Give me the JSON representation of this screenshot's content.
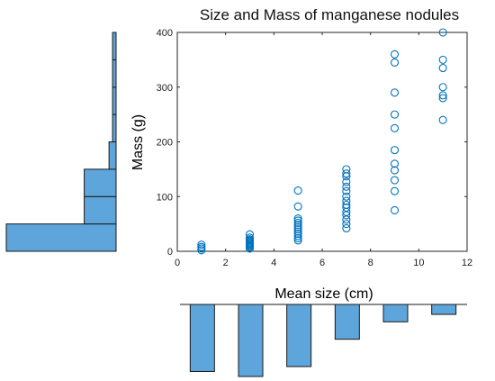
{
  "chart_data": [
    {
      "type": "scatter",
      "title": "Size and Mass of manganese nodules",
      "xlabel": "Mean size (cm)",
      "ylabel": "Mass (g)",
      "xlim": [
        0,
        12
      ],
      "ylim": [
        0,
        400
      ],
      "xticks": [
        0,
        2,
        4,
        6,
        8,
        10,
        12
      ],
      "yticks": [
        0,
        100,
        200,
        300,
        400
      ],
      "grid": false,
      "marker": "open-circle",
      "color": "#0072BD",
      "points": [
        [
          1,
          2
        ],
        [
          1,
          5
        ],
        [
          1,
          8
        ],
        [
          1,
          12
        ],
        [
          3,
          5
        ],
        [
          3,
          8
        ],
        [
          3,
          10
        ],
        [
          3,
          12
        ],
        [
          3,
          14
        ],
        [
          3,
          16
        ],
        [
          3,
          18
        ],
        [
          3,
          20
        ],
        [
          3,
          22
        ],
        [
          3,
          25
        ],
        [
          3,
          31
        ],
        [
          5,
          20
        ],
        [
          5,
          24
        ],
        [
          5,
          28
        ],
        [
          5,
          32
        ],
        [
          5,
          36
        ],
        [
          5,
          40
        ],
        [
          5,
          44
        ],
        [
          5,
          48
        ],
        [
          5,
          52
        ],
        [
          5,
          56
        ],
        [
          5,
          60
        ],
        [
          5,
          82
        ],
        [
          5,
          111
        ],
        [
          7,
          42
        ],
        [
          7,
          50
        ],
        [
          7,
          58
        ],
        [
          7,
          66
        ],
        [
          7,
          72
        ],
        [
          7,
          80
        ],
        [
          7,
          85
        ],
        [
          7,
          92
        ],
        [
          7,
          100
        ],
        [
          7,
          110
        ],
        [
          7,
          118
        ],
        [
          7,
          127
        ],
        [
          7,
          137
        ],
        [
          7,
          142
        ],
        [
          7,
          150
        ],
        [
          9,
          75
        ],
        [
          9,
          110
        ],
        [
          9,
          130
        ],
        [
          9,
          148
        ],
        [
          9,
          160
        ],
        [
          9,
          185
        ],
        [
          9,
          225
        ],
        [
          9,
          250
        ],
        [
          9,
          290
        ],
        [
          9,
          345
        ],
        [
          9,
          360
        ],
        [
          11,
          240
        ],
        [
          11,
          280
        ],
        [
          11,
          285
        ],
        [
          11,
          300
        ],
        [
          11,
          335
        ],
        [
          11,
          350
        ],
        [
          11,
          400
        ]
      ]
    },
    {
      "type": "bar",
      "orientation": "horizontal",
      "axis": "mass",
      "color": "#5DA5DA",
      "bins": [
        {
          "from": 0,
          "to": 50,
          "count": 31
        },
        {
          "from": 50,
          "to": 100,
          "count": 9
        },
        {
          "from": 100,
          "to": 150,
          "count": 9
        },
        {
          "from": 150,
          "to": 200,
          "count": 2
        },
        {
          "from": 200,
          "to": 250,
          "count": 1
        },
        {
          "from": 250,
          "to": 300,
          "count": 1
        },
        {
          "from": 300,
          "to": 350,
          "count": 1
        },
        {
          "from": 350,
          "to": 400,
          "count": 1
        }
      ]
    },
    {
      "type": "bar",
      "orientation": "vertical-downward",
      "axis": "size",
      "color": "#5DA5DA",
      "bars": [
        {
          "x": 1,
          "value": 0.27
        },
        {
          "x": 3,
          "value": 0.29
        },
        {
          "x": 5,
          "value": 0.25
        },
        {
          "x": 7,
          "value": 0.14
        },
        {
          "x": 9,
          "value": 0.07
        },
        {
          "x": 11,
          "value": 0.04
        }
      ]
    }
  ]
}
